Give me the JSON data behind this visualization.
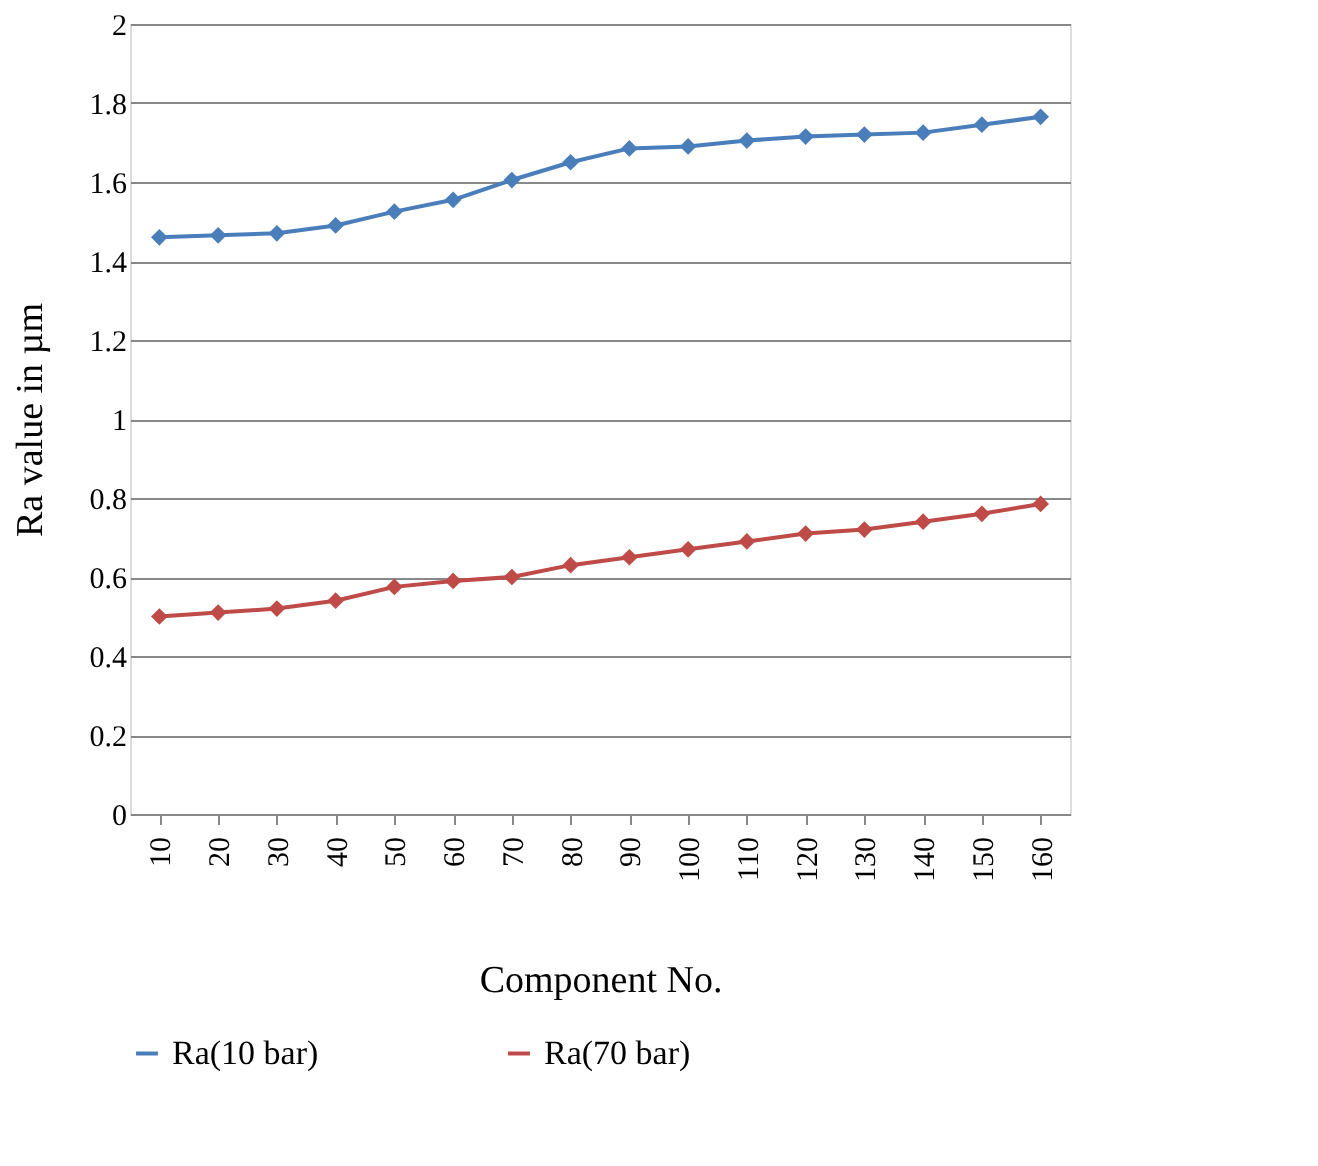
{
  "chart_data": {
    "type": "line",
    "xlabel": "Component No.",
    "ylabel": "Ra value in µm",
    "categories": [
      "10",
      "20",
      "30",
      "40",
      "50",
      "60",
      "70",
      "80",
      "90",
      "100",
      "110",
      "120",
      "130",
      "140",
      "150",
      "160"
    ],
    "series": [
      {
        "name": "Ra(10 bar)",
        "color": "#4a7ebb",
        "values": [
          1.46,
          1.465,
          1.47,
          1.49,
          1.525,
          1.555,
          1.605,
          1.65,
          1.685,
          1.69,
          1.705,
          1.715,
          1.72,
          1.725,
          1.745,
          1.765
        ]
      },
      {
        "name": "Ra(70 bar)",
        "color": "#be4b48",
        "values": [
          0.5,
          0.51,
          0.52,
          0.54,
          0.575,
          0.59,
          0.6,
          0.63,
          0.65,
          0.67,
          0.69,
          0.71,
          0.72,
          0.74,
          0.76,
          0.785
        ]
      }
    ],
    "ylim": [
      0,
      2
    ],
    "yticks": [
      0,
      0.2,
      0.4,
      0.6,
      0.8,
      1,
      1.2,
      1.4,
      1.6,
      1.8,
      2
    ],
    "grid": "y",
    "legend": "bottom",
    "marker": "diamond",
    "line_style": "solid"
  }
}
